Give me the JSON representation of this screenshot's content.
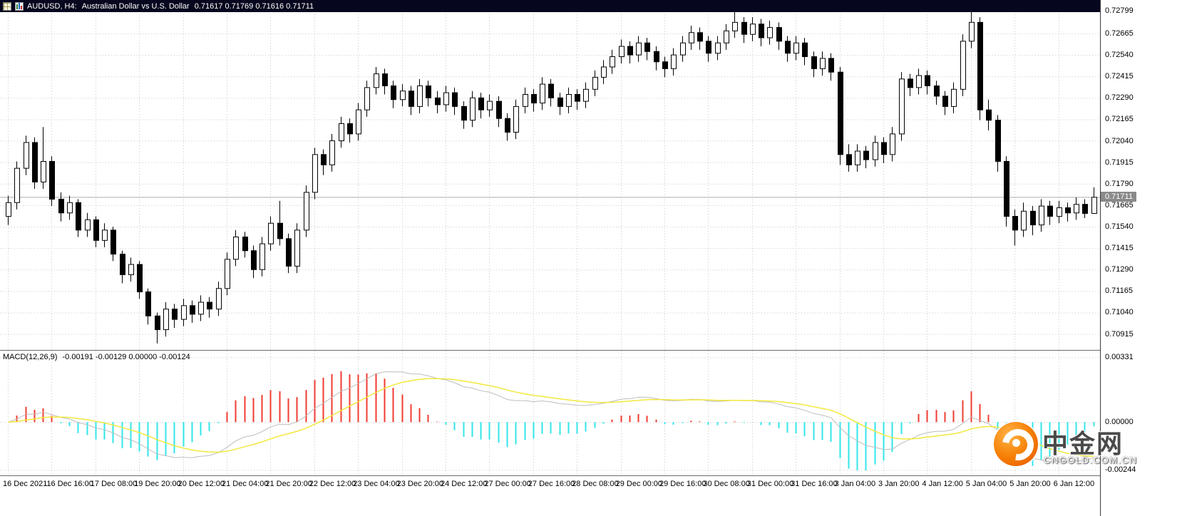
{
  "title_bar": {
    "symbol_period": "AUDUSD, H4:",
    "description": "Australian Dollar vs U.S. Dollar",
    "ohlc": "0.71617 0.71769 0.71616 0.71711",
    "icons": [
      "chart-list-icon",
      "candle-chart-icon"
    ]
  },
  "indicator_header": {
    "name": "MACD(12,26,9)",
    "values": "-0.00191 -0.00129 0.00000 -0.00124"
  },
  "watermark": {
    "brand": "中金网",
    "domain": "CNGOLD.COM.CN"
  },
  "colors": {
    "title_bg": "#06061e",
    "title_text": "#ffffff",
    "background": "#ffffff",
    "grid": "#c9c9c9",
    "candle_bull_fill": "#ffffff",
    "candle_bear_fill": "#000000",
    "candle_outline": "#000000",
    "current_price_line": "#adadad",
    "price_tag_bg": "#8a8a8a",
    "axis_text": "#000000"
  },
  "chart_data": [
    {
      "type": "candlestick",
      "symbol": "AUDUSD",
      "period": "H4",
      "title": "AUDUSD, H4: Australian Dollar vs U.S. Dollar",
      "grid": true,
      "current_price": 0.71711,
      "y_ticks": [
        0.72799,
        0.72665,
        0.7254,
        0.72415,
        0.7229,
        0.72165,
        0.7204,
        0.71915,
        0.7179,
        0.71665,
        0.7154,
        0.71415,
        0.7129,
        0.71165,
        0.7104,
        0.70915
      ],
      "y_range": [
        0.70822,
        0.7286
      ],
      "x_label_step": 5,
      "x_labels": [
        "16 Dec 2021",
        "16 Dec 16:00",
        "17 Dec 08:00",
        "19 Dec 20:00",
        "20 Dec 12:00",
        "21 Dec 04:00",
        "21 Dec 20:00",
        "22 Dec 12:00",
        "23 Dec 04:00",
        "23 Dec 20:00",
        "24 Dec 12:00",
        "27 Dec 00:00",
        "27 Dec 16:00",
        "28 Dec 08:00",
        "29 Dec 00:00",
        "29 Dec 16:00",
        "30 Dec 08:00",
        "31 Dec 00:00",
        "31 Dec 16:00",
        "3 Jan 04:00",
        "3 Jan 20:00",
        "4 Jan 12:00",
        "5 Jan 04:00",
        "5 Jan 20:00",
        "6 Jan 12:00"
      ],
      "candles": [
        [
          0.716,
          0.7172,
          0.7155,
          0.7168
        ],
        [
          0.7168,
          0.7192,
          0.7164,
          0.7188
        ],
        [
          0.7188,
          0.7207,
          0.7184,
          0.7203
        ],
        [
          0.7203,
          0.7206,
          0.7176,
          0.718
        ],
        [
          0.718,
          0.7212,
          0.7176,
          0.7192
        ],
        [
          0.7192,
          0.7195,
          0.7166,
          0.717
        ],
        [
          0.717,
          0.7174,
          0.7157,
          0.7162
        ],
        [
          0.7162,
          0.7172,
          0.7158,
          0.7168
        ],
        [
          0.7168,
          0.717,
          0.7148,
          0.7152
        ],
        [
          0.7152,
          0.7162,
          0.7148,
          0.7158
        ],
        [
          0.7158,
          0.716,
          0.7142,
          0.7146
        ],
        [
          0.7146,
          0.7156,
          0.7142,
          0.7152
        ],
        [
          0.7152,
          0.7154,
          0.7134,
          0.7138
        ],
        [
          0.7138,
          0.714,
          0.7121,
          0.7126
        ],
        [
          0.7126,
          0.7136,
          0.7122,
          0.7132
        ],
        [
          0.7132,
          0.7134,
          0.7112,
          0.7116
        ],
        [
          0.7116,
          0.7118,
          0.7097,
          0.7102
        ],
        [
          0.7102,
          0.7104,
          0.7086,
          0.7094
        ],
        [
          0.7094,
          0.711,
          0.709,
          0.7106
        ],
        [
          0.7106,
          0.7109,
          0.7095,
          0.71
        ],
        [
          0.71,
          0.7112,
          0.7096,
          0.7108
        ],
        [
          0.7108,
          0.7111,
          0.7098,
          0.7103
        ],
        [
          0.7103,
          0.7114,
          0.7099,
          0.711
        ],
        [
          0.711,
          0.7113,
          0.7101,
          0.7106
        ],
        [
          0.7106,
          0.7122,
          0.7102,
          0.7118
        ],
        [
          0.7118,
          0.7139,
          0.7114,
          0.7135
        ],
        [
          0.7135,
          0.7152,
          0.7131,
          0.7148
        ],
        [
          0.7148,
          0.7151,
          0.7136,
          0.714
        ],
        [
          0.714,
          0.7143,
          0.7124,
          0.7129
        ],
        [
          0.7129,
          0.7148,
          0.7125,
          0.7144
        ],
        [
          0.7144,
          0.716,
          0.714,
          0.7156
        ],
        [
          0.7156,
          0.7169,
          0.7143,
          0.7147
        ],
        [
          0.7147,
          0.715,
          0.7127,
          0.7131
        ],
        [
          0.7131,
          0.7156,
          0.7127,
          0.7152
        ],
        [
          0.7152,
          0.7178,
          0.7148,
          0.7174
        ],
        [
          0.7174,
          0.72,
          0.717,
          0.7196
        ],
        [
          0.7196,
          0.7199,
          0.7184,
          0.719
        ],
        [
          0.719,
          0.7208,
          0.7186,
          0.7204
        ],
        [
          0.7204,
          0.7218,
          0.72,
          0.7214
        ],
        [
          0.7214,
          0.7217,
          0.7203,
          0.7208
        ],
        [
          0.7208,
          0.7226,
          0.7204,
          0.7222
        ],
        [
          0.7222,
          0.7239,
          0.7218,
          0.7235
        ],
        [
          0.7235,
          0.7247,
          0.7231,
          0.7243
        ],
        [
          0.7243,
          0.7246,
          0.7231,
          0.7236
        ],
        [
          0.7236,
          0.7239,
          0.7223,
          0.7228
        ],
        [
          0.7228,
          0.7237,
          0.7224,
          0.7233
        ],
        [
          0.7233,
          0.7236,
          0.7219,
          0.7224
        ],
        [
          0.7224,
          0.724,
          0.722,
          0.7236
        ],
        [
          0.7236,
          0.7239,
          0.7224,
          0.7229
        ],
        [
          0.7229,
          0.7233,
          0.722,
          0.7225
        ],
        [
          0.7225,
          0.7236,
          0.7221,
          0.7232
        ],
        [
          0.7232,
          0.7235,
          0.7219,
          0.7224
        ],
        [
          0.7224,
          0.7227,
          0.7211,
          0.7216
        ],
        [
          0.7216,
          0.7233,
          0.7212,
          0.7229
        ],
        [
          0.7229,
          0.7232,
          0.7217,
          0.7222
        ],
        [
          0.7222,
          0.7231,
          0.7218,
          0.7227
        ],
        [
          0.7227,
          0.723,
          0.7212,
          0.7217
        ],
        [
          0.7217,
          0.722,
          0.7204,
          0.7209
        ],
        [
          0.7209,
          0.7228,
          0.7205,
          0.7224
        ],
        [
          0.7224,
          0.7235,
          0.722,
          0.7231
        ],
        [
          0.7231,
          0.7234,
          0.7221,
          0.7226
        ],
        [
          0.7226,
          0.7241,
          0.7222,
          0.7237
        ],
        [
          0.7237,
          0.724,
          0.7224,
          0.7229
        ],
        [
          0.7229,
          0.7232,
          0.7219,
          0.7224
        ],
        [
          0.7224,
          0.7235,
          0.722,
          0.7231
        ],
        [
          0.7231,
          0.7234,
          0.7222,
          0.7227
        ],
        [
          0.7227,
          0.7238,
          0.7223,
          0.7234
        ],
        [
          0.7234,
          0.7245,
          0.723,
          0.7241
        ],
        [
          0.7241,
          0.7251,
          0.7237,
          0.7247
        ],
        [
          0.7247,
          0.7257,
          0.7243,
          0.7253
        ],
        [
          0.7253,
          0.7263,
          0.7249,
          0.7259
        ],
        [
          0.7259,
          0.7262,
          0.7249,
          0.7254
        ],
        [
          0.7254,
          0.7265,
          0.725,
          0.7261
        ],
        [
          0.7261,
          0.7264,
          0.7251,
          0.7256
        ],
        [
          0.7256,
          0.7259,
          0.7245,
          0.725
        ],
        [
          0.725,
          0.7253,
          0.7241,
          0.7246
        ],
        [
          0.7246,
          0.7258,
          0.7242,
          0.7254
        ],
        [
          0.7254,
          0.7265,
          0.725,
          0.7261
        ],
        [
          0.7261,
          0.7271,
          0.7257,
          0.7267
        ],
        [
          0.7267,
          0.727,
          0.7257,
          0.7262
        ],
        [
          0.7262,
          0.7265,
          0.725,
          0.7255
        ],
        [
          0.7255,
          0.7265,
          0.7251,
          0.7261
        ],
        [
          0.7261,
          0.7272,
          0.7257,
          0.7268
        ],
        [
          0.7268,
          0.728,
          0.7264,
          0.7273
        ],
        [
          0.7273,
          0.7276,
          0.7261,
          0.7266
        ],
        [
          0.7266,
          0.7276,
          0.7262,
          0.7272
        ],
        [
          0.7272,
          0.7275,
          0.7259,
          0.7264
        ],
        [
          0.7264,
          0.7274,
          0.726,
          0.727
        ],
        [
          0.727,
          0.7273,
          0.7257,
          0.7262
        ],
        [
          0.7262,
          0.7265,
          0.725,
          0.7255
        ],
        [
          0.7255,
          0.7265,
          0.7251,
          0.7261
        ],
        [
          0.7261,
          0.7264,
          0.7248,
          0.7253
        ],
        [
          0.7253,
          0.7256,
          0.7241,
          0.7246
        ],
        [
          0.7246,
          0.7256,
          0.7242,
          0.7252
        ],
        [
          0.7252,
          0.7255,
          0.7239,
          0.7244
        ],
        [
          0.7244,
          0.7247,
          0.719,
          0.7196
        ],
        [
          0.7196,
          0.7202,
          0.7186,
          0.719
        ],
        [
          0.719,
          0.7202,
          0.7186,
          0.7198
        ],
        [
          0.7198,
          0.7201,
          0.7188,
          0.7193
        ],
        [
          0.7193,
          0.7207,
          0.7189,
          0.7203
        ],
        [
          0.7203,
          0.7206,
          0.7191,
          0.7196
        ],
        [
          0.7196,
          0.7212,
          0.7192,
          0.7208
        ],
        [
          0.7208,
          0.7244,
          0.7204,
          0.724
        ],
        [
          0.724,
          0.7243,
          0.723,
          0.7235
        ],
        [
          0.7235,
          0.7246,
          0.7231,
          0.7242
        ],
        [
          0.7242,
          0.7245,
          0.7231,
          0.7236
        ],
        [
          0.7236,
          0.7239,
          0.7225,
          0.723
        ],
        [
          0.723,
          0.7233,
          0.7219,
          0.7224
        ],
        [
          0.7224,
          0.7238,
          0.722,
          0.7234
        ],
        [
          0.7234,
          0.7266,
          0.723,
          0.7262
        ],
        [
          0.7262,
          0.728,
          0.7258,
          0.7273
        ],
        [
          0.7273,
          0.7276,
          0.7216,
          0.7222
        ],
        [
          0.7222,
          0.7228,
          0.721,
          0.7216
        ],
        [
          0.7216,
          0.7219,
          0.7186,
          0.7192
        ],
        [
          0.7192,
          0.7195,
          0.7154,
          0.716
        ],
        [
          0.716,
          0.7164,
          0.7143,
          0.7152
        ],
        [
          0.7152,
          0.7168,
          0.7148,
          0.7163
        ],
        [
          0.7163,
          0.7166,
          0.7149,
          0.7155
        ],
        [
          0.7155,
          0.717,
          0.7151,
          0.7166
        ],
        [
          0.7166,
          0.7169,
          0.7155,
          0.716
        ],
        [
          0.716,
          0.7169,
          0.7156,
          0.7165
        ],
        [
          0.7165,
          0.7168,
          0.7157,
          0.7162
        ],
        [
          0.7162,
          0.7171,
          0.7158,
          0.7167
        ],
        [
          0.7167,
          0.717,
          0.7159,
          0.71617
        ],
        [
          0.71617,
          0.71769,
          0.71616,
          0.71711
        ]
      ]
    },
    {
      "type": "macd",
      "params": [
        12,
        26,
        9
      ],
      "derived_from": "chart_data[0].candles closes",
      "current_values": [
        -0.00191,
        -0.00129,
        0.0,
        -0.00124
      ],
      "y_ticks": [
        0.00331,
        0.0,
        -0.00244
      ],
      "y_range": [
        -0.00272,
        0.00365
      ],
      "colors": {
        "hist_up": "#f03b30",
        "hist_down": "#31e6ea",
        "signal_line": "#f2e83c",
        "main_line": "#bdbdbd"
      }
    }
  ]
}
